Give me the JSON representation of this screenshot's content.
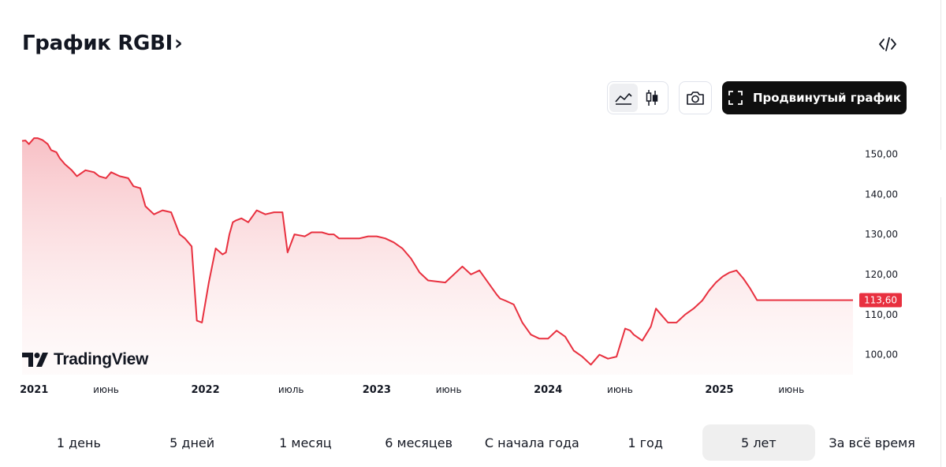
{
  "header": {
    "title": "График RGBI",
    "chevron": "›"
  },
  "toolbar": {
    "advanced_label": "Продвинутый график"
  },
  "chart_data": {
    "type": "area",
    "title": "График RGBI",
    "xlabel": "",
    "ylabel": "",
    "ylim": [
      95,
      155
    ],
    "xlim": [
      2020.93,
      2025.78
    ],
    "color": "#e8303f",
    "fill_color": "#f7c8cc",
    "last_value_label": "113,60",
    "y_ticks": [
      {
        "value": 150,
        "label": "150,00"
      },
      {
        "value": 140,
        "label": "140,00"
      },
      {
        "value": 130,
        "label": "130,00"
      },
      {
        "value": 120,
        "label": "120,00"
      },
      {
        "value": 110,
        "label": "110,00"
      },
      {
        "value": 100,
        "label": "100,00"
      }
    ],
    "x_ticks": [
      {
        "value": 2021.0,
        "label": "2021",
        "bold": true
      },
      {
        "value": 2021.42,
        "label": "июнь",
        "bold": false
      },
      {
        "value": 2022.0,
        "label": "2022",
        "bold": true
      },
      {
        "value": 2022.5,
        "label": "июль",
        "bold": false
      },
      {
        "value": 2023.0,
        "label": "2023",
        "bold": true
      },
      {
        "value": 2023.42,
        "label": "июнь",
        "bold": false
      },
      {
        "value": 2024.0,
        "label": "2024",
        "bold": true
      },
      {
        "value": 2024.42,
        "label": "июнь",
        "bold": false
      },
      {
        "value": 2025.0,
        "label": "2025",
        "bold": true
      },
      {
        "value": 2025.42,
        "label": "июнь",
        "bold": false
      }
    ],
    "series": [
      {
        "x": [
          2020.93,
          2020.95,
          2020.97,
          2021.0,
          2021.02,
          2021.05,
          2021.08,
          2021.1,
          2021.13,
          2021.15,
          2021.18,
          2021.22,
          2021.25,
          2021.3,
          2021.35,
          2021.38,
          2021.42,
          2021.45,
          2021.5,
          2021.55,
          2021.58,
          2021.62,
          2021.65,
          2021.7,
          2021.75,
          2021.8,
          2021.85,
          2021.88,
          2021.92,
          2021.95,
          2021.98,
          2022.02,
          2022.06,
          2022.1,
          2022.12,
          2022.14,
          2022.16,
          2022.18,
          2022.21,
          2022.25,
          2022.3,
          2022.35,
          2022.4,
          2022.45,
          2022.48,
          2022.52,
          2022.58,
          2022.62,
          2022.65,
          2022.68,
          2022.72,
          2022.75,
          2022.78,
          2022.82,
          2022.85,
          2022.9,
          2022.95,
          2023.0,
          2023.05,
          2023.1,
          2023.15,
          2023.2,
          2023.25,
          2023.3,
          2023.4,
          2023.5,
          2023.55,
          2023.6,
          2023.65,
          2023.7,
          2023.72,
          2023.75,
          2023.8,
          2023.85,
          2023.9,
          2023.95,
          2024.0,
          2024.05,
          2024.1,
          2024.15,
          2024.2,
          2024.25,
          2024.3,
          2024.35,
          2024.4,
          2024.45,
          2024.48,
          2024.5,
          2024.55,
          2024.6,
          2024.63,
          2024.66,
          2024.7,
          2024.75,
          2024.8,
          2024.85,
          2024.9,
          2024.94,
          2024.98,
          2025.02,
          2025.06,
          2025.1,
          2025.14,
          2025.18,
          2025.22,
          2025.28,
          2025.33,
          2025.38,
          2025.42,
          2025.47,
          2025.52,
          2025.56,
          2025.6,
          2025.64,
          2025.68,
          2025.73,
          2025.78
        ],
        "values": [
          153.3,
          153.4,
          152.5,
          154.0,
          154.0,
          153.5,
          152.5,
          151.0,
          150.5,
          149.0,
          147.5,
          146.0,
          144.5,
          146.0,
          145.5,
          144.5,
          144.0,
          145.5,
          144.5,
          144.0,
          142.0,
          141.5,
          137.0,
          135.0,
          136.0,
          135.5,
          130.0,
          129.0,
          127.0,
          108.5,
          108.0,
          118.0,
          126.5,
          125.0,
          125.5,
          130.0,
          133.0,
          133.5,
          134.0,
          133.0,
          136.0,
          135.0,
          135.5,
          135.5,
          125.5,
          130.0,
          129.5,
          130.5,
          130.5,
          130.5,
          130.0,
          130.0,
          129.0,
          129.0,
          129.0,
          129.0,
          129.5,
          129.5,
          129.0,
          128.0,
          126.5,
          124.0,
          120.5,
          118.5,
          118.0,
          122.0,
          120.0,
          121.0,
          118.0,
          115.0,
          114.0,
          113.5,
          112.5,
          108.0,
          105.0,
          104.0,
          104.0,
          106.0,
          104.5,
          101.0,
          99.5,
          97.5,
          100.0,
          99.0,
          99.5,
          106.5,
          106.0,
          105.0,
          103.5,
          107.0,
          111.5,
          110.0,
          108.0,
          108.0,
          110.0,
          111.5,
          113.5,
          116.0,
          118.0,
          119.5,
          120.5,
          121.0,
          119.0,
          116.5,
          113.6,
          113.6,
          113.6,
          113.6,
          113.6,
          113.6,
          113.6,
          113.6,
          113.6,
          113.6,
          113.6,
          113.6,
          113.6
        ]
      }
    ]
  },
  "ranges": [
    {
      "label": "1 день",
      "active": false
    },
    {
      "label": "5 дней",
      "active": false
    },
    {
      "label": "1 месяц",
      "active": false
    },
    {
      "label": "6 месяцев",
      "active": false
    },
    {
      "label": "С начала года",
      "active": false
    },
    {
      "label": "1 год",
      "active": false
    },
    {
      "label": "5 лет",
      "active": true
    },
    {
      "label": "За всё время",
      "active": false
    }
  ],
  "logo": {
    "text": "TradingView"
  },
  "icons": {
    "embed": "code-icon",
    "area_chart": "area-chart-icon",
    "candles": "candlestick-icon",
    "camera": "camera-icon",
    "fullscreen": "fullscreen-icon",
    "logo": "tradingview-logo-icon"
  }
}
